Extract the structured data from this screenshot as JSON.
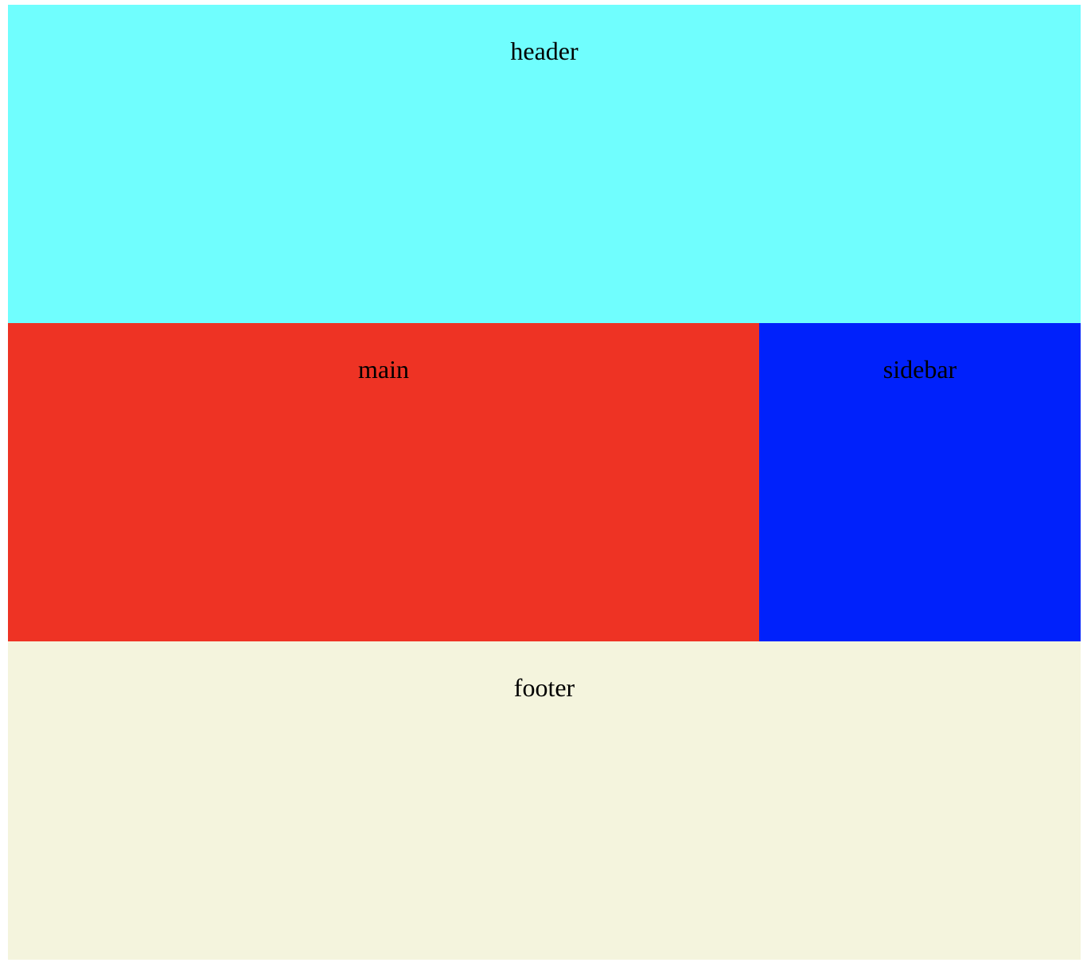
{
  "header": {
    "label": "header",
    "color": "#70fefe"
  },
  "main": {
    "label": "main",
    "color": "#ee3324"
  },
  "sidebar": {
    "label": "sidebar",
    "color": "#0021fb"
  },
  "footer": {
    "label": "footer",
    "color": "#f4f4dd"
  }
}
